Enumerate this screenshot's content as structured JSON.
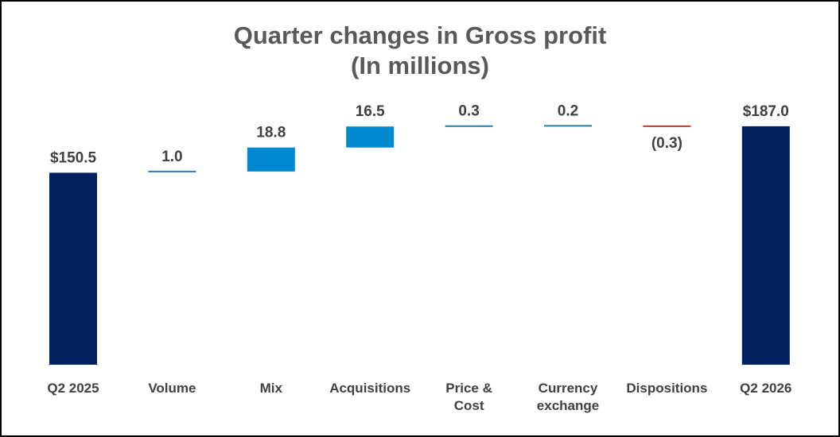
{
  "chart_data": {
    "type": "waterfall",
    "title_lines": [
      "Quarter changes in Gross profit",
      "(In millions)"
    ],
    "xlabel": "",
    "ylabel": "",
    "start": 150.5,
    "end": 187.0,
    "categories": [
      {
        "label_lines": [
          "Q2 2025"
        ],
        "kind": "total",
        "value": 150.5,
        "label": "$150.5"
      },
      {
        "label_lines": [
          "Volume"
        ],
        "kind": "change",
        "value": 1.0,
        "label": "1.0"
      },
      {
        "label_lines": [
          "Mix"
        ],
        "kind": "change",
        "value": 18.8,
        "label": "18.8"
      },
      {
        "label_lines": [
          "Acquisitions"
        ],
        "kind": "change",
        "value": 16.5,
        "label": "16.5"
      },
      {
        "label_lines": [
          "Price &",
          "Cost"
        ],
        "kind": "change",
        "value": 0.3,
        "label": "0.3"
      },
      {
        "label_lines": [
          "Currency",
          "exchange"
        ],
        "kind": "change",
        "value": 0.2,
        "label": "0.2"
      },
      {
        "label_lines": [
          "Dispositions"
        ],
        "kind": "change",
        "value": -0.3,
        "label": "(0.3)"
      },
      {
        "label_lines": [
          "Q2 2026"
        ],
        "kind": "total",
        "value": 187.0,
        "label": "$187.0"
      }
    ],
    "colors": {
      "total": "#002060",
      "increase": "#0088D1",
      "increase_small": "#1F7FAF",
      "decrease": "#C0392B"
    },
    "grid": false,
    "legend": "none"
  }
}
